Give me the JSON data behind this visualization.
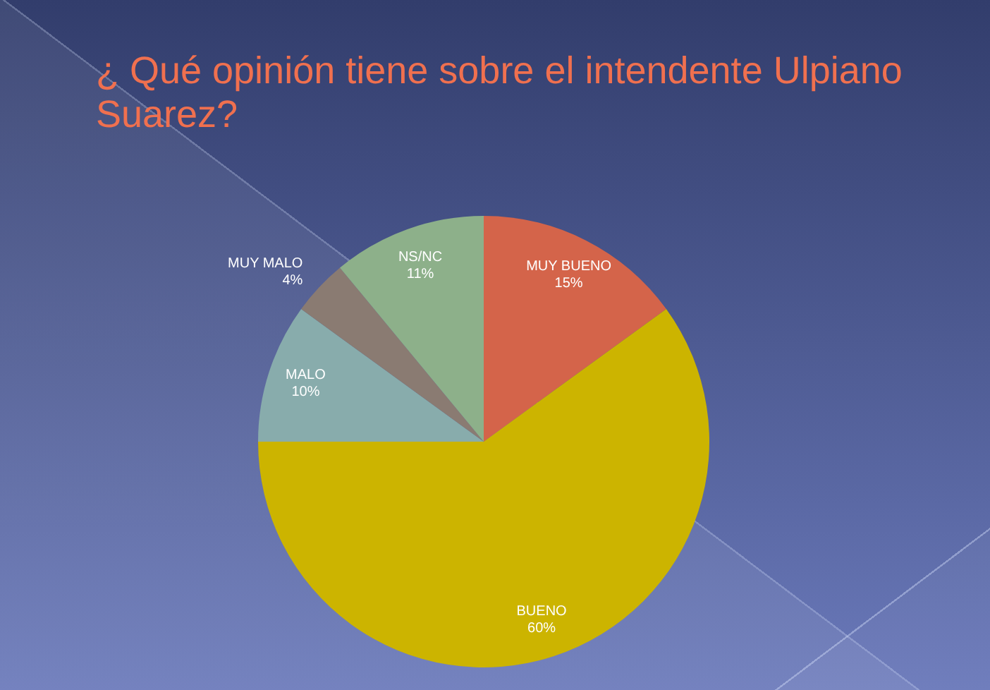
{
  "chart_data": {
    "type": "pie",
    "title": "¿ Qué opinión tiene sobre el intendente Ulpiano Suarez?",
    "categories": [
      "MUY BUENO",
      "BUENO",
      "MALO",
      "MUY MALO",
      "NS/NC"
    ],
    "values": [
      15,
      60,
      10,
      4,
      11
    ],
    "colors": [
      "#d4644a",
      "#ccb400",
      "#88acac",
      "#8a7b72",
      "#8db08a"
    ],
    "value_labels": [
      "15%",
      "60%",
      "10%",
      "4%",
      "11%"
    ]
  }
}
